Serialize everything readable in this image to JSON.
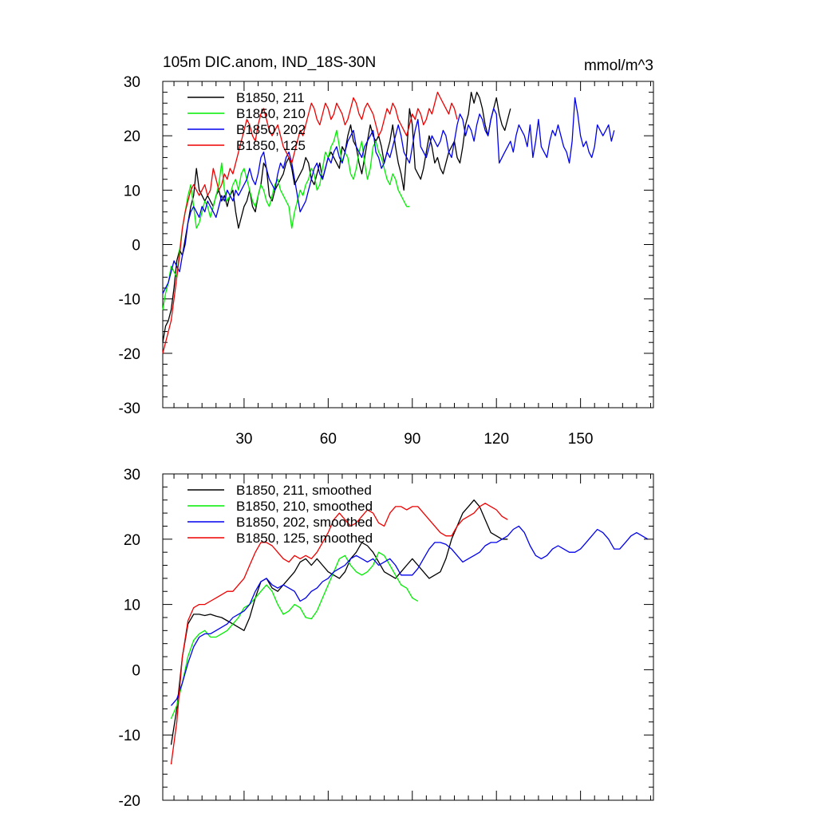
{
  "colors": {
    "211": "#000000",
    "210": "#00ee00",
    "202": "#0000ee",
    "125": "#ee0000"
  },
  "chart_data": [
    {
      "type": "line",
      "title": "105m DIC.anom, IND_18S-30N",
      "units": "mmol/m^3",
      "xlim": [
        1,
        176
      ],
      "ylim": [
        -30,
        30
      ],
      "xticks": [
        30,
        60,
        90,
        120,
        150
      ],
      "yticks": [
        -30,
        -20,
        -10,
        0,
        10,
        20,
        30
      ],
      "legend_position": "top-left",
      "series": [
        {
          "key": "211",
          "name": "B1850, 211",
          "x_start": 1,
          "values": [
            -18,
            -15,
            -14,
            -12,
            -8,
            -3,
            -1,
            -2,
            1,
            4,
            7,
            9,
            14,
            10,
            9,
            8,
            9,
            8,
            7,
            9,
            10,
            8,
            9,
            7,
            9,
            10,
            6,
            3,
            5,
            7,
            8,
            10,
            7,
            6,
            9,
            11,
            15,
            14,
            9,
            8,
            10,
            11,
            12,
            13,
            15,
            16,
            14,
            11,
            12,
            13,
            14,
            16,
            15,
            12,
            11,
            13,
            15,
            12,
            14,
            16,
            17,
            16,
            15,
            14,
            18,
            17,
            20,
            22,
            19,
            18,
            15,
            13,
            16,
            19,
            22,
            20,
            19,
            20,
            18,
            15,
            17,
            19,
            22,
            18,
            15,
            13,
            10,
            17,
            25,
            22,
            14,
            13,
            12,
            14,
            17,
            20,
            18,
            15,
            16,
            14,
            13,
            15,
            17,
            18,
            19,
            16,
            15,
            18,
            22,
            24,
            28,
            26,
            28,
            27,
            25,
            22,
            20,
            23,
            25,
            27,
            24,
            22,
            21,
            23,
            25
          ]
        },
        {
          "key": "210",
          "name": "B1850, 210",
          "x_start": 1,
          "values": [
            -12,
            -9,
            -7,
            -4,
            -5,
            -6,
            -1,
            3,
            6,
            9,
            11,
            7,
            3,
            4,
            6,
            8,
            7,
            5,
            7,
            9,
            11,
            15,
            10,
            8,
            9,
            11,
            12,
            10,
            13,
            14,
            12,
            10,
            8,
            7,
            9,
            11,
            10,
            8,
            7,
            9,
            11,
            12,
            10,
            9,
            8,
            7,
            3,
            6,
            8,
            10,
            9,
            11,
            12,
            14,
            13,
            10,
            11,
            14,
            17,
            16,
            18,
            19,
            21,
            18,
            15,
            17,
            16,
            13,
            12,
            14,
            17,
            19,
            15,
            12,
            14,
            18,
            19,
            17,
            16,
            14,
            12,
            11,
            13,
            12,
            10,
            9,
            8,
            7,
            7
          ]
        },
        {
          "key": "202",
          "name": "B1850, 202",
          "x_start": 1,
          "values": [
            -9,
            -8,
            -7,
            -5,
            -3,
            -4,
            -5,
            -2,
            0,
            4,
            6,
            7,
            6,
            5,
            7,
            6,
            8,
            7,
            6,
            5,
            7,
            9,
            8,
            10,
            9,
            8,
            10,
            9,
            10,
            11,
            12,
            14,
            12,
            11,
            13,
            16,
            17,
            14,
            12,
            11,
            10,
            13,
            15,
            14,
            16,
            17,
            15,
            12,
            9,
            6,
            7,
            8,
            10,
            12,
            14,
            15,
            13,
            12,
            14,
            16,
            15,
            17,
            18,
            16,
            15,
            17,
            19,
            20,
            21,
            18,
            17,
            16,
            18,
            19,
            20,
            21,
            17,
            16,
            14,
            15,
            17,
            16,
            18,
            20,
            22,
            20,
            17,
            16,
            15,
            18,
            21,
            23,
            18,
            17,
            16,
            18,
            20,
            19,
            18,
            19,
            21,
            20,
            17,
            16,
            19,
            22,
            24,
            23,
            20,
            22,
            21,
            19,
            22,
            24,
            23,
            21,
            20,
            23,
            25,
            24,
            15,
            16,
            17,
            18,
            19,
            17,
            20,
            22,
            21,
            20,
            18,
            22,
            16,
            19,
            23,
            18,
            17,
            16,
            19,
            21,
            20,
            22,
            20,
            18,
            17,
            15,
            19,
            27,
            24,
            20,
            18,
            19,
            17,
            16,
            18,
            22,
            21,
            20,
            21,
            22,
            19,
            21
          ]
        },
        {
          "key": "125",
          "name": "B1850, 125",
          "x_start": 1,
          "values": [
            -20,
            -18,
            -16,
            -14,
            -10,
            -6,
            -2,
            3,
            6,
            8,
            10,
            11,
            10,
            9,
            10,
            11,
            9,
            10,
            14,
            12,
            10,
            11,
            13,
            12,
            14,
            13,
            15,
            17,
            19,
            21,
            23,
            22,
            20,
            19,
            22,
            24,
            25,
            23,
            21,
            20,
            21,
            22,
            20,
            18,
            17,
            16,
            15,
            17,
            19,
            21,
            20,
            22,
            24,
            26,
            25,
            23,
            22,
            24,
            26,
            25,
            23,
            24,
            26,
            25,
            24,
            22,
            23,
            25,
            27,
            26,
            24,
            23,
            25,
            26,
            25,
            24,
            22,
            20,
            21,
            23,
            25,
            24,
            26,
            25,
            23,
            22,
            21,
            20,
            22,
            24,
            23,
            25,
            24,
            22,
            23,
            25,
            24,
            26,
            28,
            27,
            26,
            25,
            24,
            26,
            25,
            23
          ]
        }
      ]
    },
    {
      "type": "line",
      "ylim": [
        -20,
        30
      ],
      "xlim": [
        1,
        176
      ],
      "yticks": [
        -20,
        -10,
        0,
        10,
        20,
        30
      ],
      "xticks": [
        30,
        60,
        90,
        120,
        150
      ],
      "legend_position": "top-left",
      "series": [
        {
          "key": "211",
          "name": "B1850, 211, smoothed",
          "x": [
            4,
            6,
            8,
            10,
            12,
            14,
            16,
            18,
            20,
            22,
            24,
            26,
            28,
            30,
            32,
            34,
            36,
            38,
            40,
            42,
            44,
            46,
            48,
            50,
            52,
            54,
            56,
            58,
            60,
            62,
            64,
            66,
            68,
            70,
            72,
            74,
            76,
            78,
            80,
            82,
            84,
            86,
            88,
            90,
            92,
            94,
            96,
            98,
            100,
            102,
            104,
            106,
            108,
            110,
            112,
            114,
            116,
            118,
            120,
            122,
            124
          ],
          "y": [
            -11.5,
            -6,
            2,
            7,
            8.5,
            8.5,
            8.3,
            8.5,
            8.2,
            8,
            7.5,
            7,
            6.5,
            6,
            8,
            11,
            13.5,
            14,
            12.5,
            12,
            13,
            14,
            15,
            16.5,
            17,
            16,
            17,
            16,
            15,
            14.5,
            14,
            15,
            17,
            18,
            19.5,
            19,
            18,
            16.5,
            15,
            14.5,
            14,
            15,
            16,
            17,
            16,
            15,
            14,
            14.5,
            15,
            17,
            20,
            22,
            24,
            25,
            26,
            25,
            23,
            21,
            20.5,
            20,
            20
          ]
        },
        {
          "key": "210",
          "name": "B1850, 210, smoothed",
          "x": [
            4,
            6,
            8,
            10,
            12,
            14,
            16,
            18,
            20,
            22,
            24,
            26,
            28,
            30,
            32,
            34,
            36,
            38,
            40,
            42,
            44,
            46,
            48,
            50,
            52,
            54,
            56,
            58,
            60,
            62,
            64,
            66,
            68,
            70,
            72,
            74,
            76,
            78,
            80,
            82,
            84,
            86,
            88,
            90,
            92
          ],
          "y": [
            -7.5,
            -5.5,
            -2,
            2,
            4.5,
            5.5,
            6,
            5,
            5,
            5.5,
            6,
            7,
            8,
            9.5,
            10,
            11,
            12,
            13,
            12,
            10,
            8.5,
            9,
            10,
            9.5,
            8,
            7.8,
            9,
            11,
            13,
            15,
            17,
            17.5,
            16,
            15,
            14.5,
            15,
            16,
            18,
            17.5,
            16,
            14.5,
            13,
            12.5,
            11,
            10.5
          ]
        },
        {
          "key": "202",
          "name": "B1850, 202, smoothed",
          "x": [
            4,
            6,
            8,
            10,
            12,
            14,
            16,
            18,
            20,
            22,
            24,
            26,
            28,
            30,
            32,
            34,
            36,
            38,
            40,
            42,
            44,
            46,
            48,
            50,
            52,
            54,
            56,
            58,
            60,
            62,
            64,
            66,
            68,
            70,
            72,
            74,
            76,
            78,
            80,
            82,
            84,
            86,
            88,
            90,
            92,
            94,
            96,
            98,
            100,
            102,
            104,
            106,
            108,
            110,
            112,
            114,
            116,
            118,
            120,
            122,
            124,
            126,
            128,
            130,
            132,
            134,
            136,
            138,
            140,
            142,
            144,
            146,
            148,
            150,
            152,
            154,
            156,
            158,
            160,
            162,
            164,
            166,
            168,
            170,
            172,
            174
          ],
          "y": [
            -5.5,
            -4.5,
            -2,
            1,
            3.5,
            5,
            5.5,
            5.5,
            6,
            6.5,
            7,
            8,
            8.5,
            9,
            10,
            12,
            13.5,
            14,
            13,
            12.5,
            13,
            12.5,
            12,
            10.5,
            11,
            12,
            12.5,
            13.5,
            14,
            15,
            15.5,
            16,
            17,
            17.5,
            17,
            16.5,
            17,
            16,
            16.5,
            17,
            16,
            14.5,
            14.5,
            14.5,
            15.5,
            17,
            18.5,
            19.5,
            19.5,
            19.2,
            18.5,
            17.5,
            16.5,
            17,
            17.5,
            18,
            19,
            19.5,
            19.5,
            20,
            20.5,
            21.5,
            22,
            21,
            19,
            17.5,
            17,
            17.5,
            18.5,
            19,
            18.5,
            18,
            18,
            18.5,
            19.5,
            20.5,
            21.5,
            21,
            20,
            18.5,
            18.5,
            19.5,
            20.5,
            21,
            20.5,
            20
          ]
        },
        {
          "key": "125",
          "name": "B1850, 125, smoothed",
          "x": [
            4,
            6,
            8,
            10,
            12,
            14,
            16,
            18,
            20,
            22,
            24,
            26,
            28,
            30,
            32,
            34,
            36,
            38,
            40,
            42,
            44,
            46,
            48,
            50,
            52,
            54,
            56,
            58,
            60,
            62,
            64,
            66,
            68,
            70,
            72,
            74,
            76,
            78,
            80,
            82,
            84,
            86,
            88,
            90,
            92,
            94,
            96,
            98,
            100,
            102,
            104,
            106,
            108,
            110,
            112,
            114,
            116,
            118,
            120,
            122,
            124
          ],
          "y": [
            -14.5,
            -8,
            2,
            7.5,
            9.5,
            10,
            10,
            10.5,
            11,
            11.5,
            12,
            12,
            13,
            14,
            16,
            18,
            19.5,
            19.5,
            19,
            18,
            17,
            16.5,
            17.5,
            17,
            17.5,
            17,
            18,
            19.5,
            21,
            23,
            24,
            23,
            22,
            22.5,
            23.5,
            24.5,
            24,
            22.5,
            22,
            24,
            25,
            25,
            24.5,
            25,
            25,
            24,
            23,
            22,
            21,
            20.5,
            20.5,
            22,
            23,
            23.5,
            24,
            25,
            25.5,
            25,
            24.5,
            23.5,
            23
          ]
        }
      ]
    }
  ]
}
